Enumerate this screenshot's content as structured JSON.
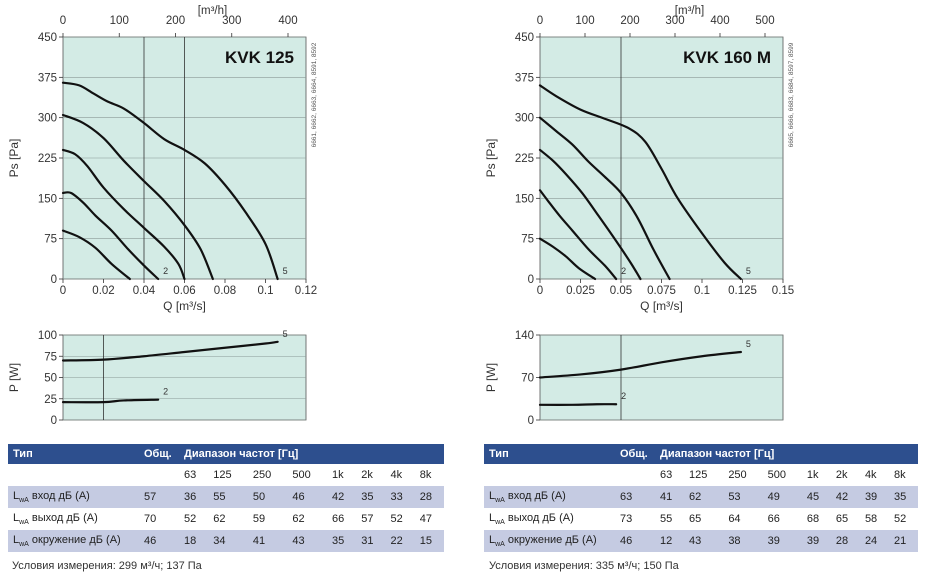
{
  "colors": {
    "plot_fill": "#d3ebe5",
    "grid": "#8a9a96",
    "curve": "#111111",
    "table_header": "#2d4f8e",
    "table_row_shade": "#c5cbe2"
  },
  "chart_data": [
    {
      "type": "line",
      "title": "KVK 125",
      "side_note": "6661, 6662, 6663, 6664, 8591, 8592",
      "xlabel": "Q [m³/s]",
      "x_ticks": [
        "0",
        "0.02",
        "0.04",
        "0.06",
        "0.08",
        "0.1",
        "0.12"
      ],
      "xlim": [
        0,
        0.12
      ],
      "top_axis_label": "[m³/h]",
      "top_ticks": [
        "0",
        "100",
        "200",
        "300",
        "400"
      ],
      "top_axis_factor": 3600,
      "ylabel": "Ps [Pa]",
      "y_ticks": [
        "0",
        "75",
        "150",
        "225",
        "300",
        "375",
        "450"
      ],
      "ylim": [
        0,
        450
      ],
      "vlines": [
        0.04,
        0.06
      ],
      "series": [
        {
          "label": "",
          "points": [
            [
              0,
              90
            ],
            [
              0.008,
              78
            ],
            [
              0.016,
              58
            ],
            [
              0.024,
              28
            ],
            [
              0.033,
              0
            ]
          ]
        },
        {
          "label": "2",
          "points": [
            [
              0,
              160
            ],
            [
              0.004,
              160
            ],
            [
              0.01,
              142
            ],
            [
              0.016,
              118
            ],
            [
              0.024,
              90
            ],
            [
              0.032,
              56
            ],
            [
              0.04,
              25
            ],
            [
              0.047,
              0
            ]
          ]
        },
        {
          "label": "",
          "points": [
            [
              0,
              240
            ],
            [
              0.006,
              232
            ],
            [
              0.012,
              210
            ],
            [
              0.02,
              170
            ],
            [
              0.03,
              130
            ],
            [
              0.04,
              95
            ],
            [
              0.05,
              60
            ],
            [
              0.057,
              28
            ],
            [
              0.06,
              0
            ]
          ]
        },
        {
          "label": "",
          "points": [
            [
              0,
              305
            ],
            [
              0.01,
              290
            ],
            [
              0.02,
              262
            ],
            [
              0.03,
              220
            ],
            [
              0.04,
              182
            ],
            [
              0.05,
              145
            ],
            [
              0.06,
              100
            ],
            [
              0.068,
              55
            ],
            [
              0.074,
              0
            ]
          ]
        },
        {
          "label": "5",
          "points": [
            [
              0,
              365
            ],
            [
              0.008,
              360
            ],
            [
              0.015,
              345
            ],
            [
              0.022,
              330
            ],
            [
              0.03,
              317
            ],
            [
              0.04,
              290
            ],
            [
              0.05,
              260
            ],
            [
              0.06,
              240
            ],
            [
              0.07,
              215
            ],
            [
              0.08,
              175
            ],
            [
              0.09,
              125
            ],
            [
              0.1,
              65
            ],
            [
              0.106,
              0
            ]
          ]
        }
      ]
    },
    {
      "type": "line",
      "title": "KVK 160 M",
      "side_note": "6665, 6666, 6683, 6684, 8597, 8599",
      "xlabel": "Q [m³/s]",
      "x_ticks": [
        "0",
        "0.025",
        "0.05",
        "0.075",
        "0.1",
        "0.125",
        "0.15"
      ],
      "xlim": [
        0,
        0.15
      ],
      "top_axis_label": "[m³/h]",
      "top_ticks": [
        "0",
        "100",
        "200",
        "300",
        "400",
        "500"
      ],
      "top_axis_factor": 3600,
      "ylabel": "Ps [Pa]",
      "y_ticks": [
        "0",
        "75",
        "150",
        "225",
        "300",
        "375",
        "450"
      ],
      "ylim": [
        0,
        450
      ],
      "vlines": [
        0.05
      ],
      "series": [
        {
          "label": "",
          "points": [
            [
              0,
              75
            ],
            [
              0.008,
              60
            ],
            [
              0.016,
              42
            ],
            [
              0.024,
              20
            ],
            [
              0.034,
              0
            ]
          ]
        },
        {
          "label": "2",
          "points": [
            [
              0,
              165
            ],
            [
              0.005,
              145
            ],
            [
              0.012,
              118
            ],
            [
              0.02,
              90
            ],
            [
              0.03,
              55
            ],
            [
              0.04,
              25
            ],
            [
              0.047,
              0
            ]
          ]
        },
        {
          "label": "",
          "points": [
            [
              0,
              240
            ],
            [
              0.008,
              220
            ],
            [
              0.016,
              195
            ],
            [
              0.026,
              160
            ],
            [
              0.036,
              118
            ],
            [
              0.046,
              75
            ],
            [
              0.056,
              30
            ],
            [
              0.062,
              0
            ]
          ]
        },
        {
          "label": "",
          "points": [
            [
              0,
              300
            ],
            [
              0.01,
              275
            ],
            [
              0.02,
              250
            ],
            [
              0.03,
              218
            ],
            [
              0.04,
              190
            ],
            [
              0.05,
              160
            ],
            [
              0.06,
              115
            ],
            [
              0.07,
              55
            ],
            [
              0.08,
              0
            ]
          ]
        },
        {
          "label": "5",
          "points": [
            [
              0,
              360
            ],
            [
              0.01,
              340
            ],
            [
              0.025,
              315
            ],
            [
              0.04,
              298
            ],
            [
              0.055,
              280
            ],
            [
              0.065,
              255
            ],
            [
              0.075,
              205
            ],
            [
              0.085,
              150
            ],
            [
              0.1,
              85
            ],
            [
              0.114,
              30
            ],
            [
              0.124,
              0
            ]
          ]
        }
      ]
    },
    {
      "type": "line",
      "xlabel": "",
      "xlim": [
        0,
        0.12
      ],
      "ylabel": "P [W]",
      "y_ticks": [
        "0",
        "25",
        "50",
        "75",
        "100"
      ],
      "ylim": [
        0,
        100
      ],
      "vlines": [
        0.02
      ],
      "series": [
        {
          "label": "2",
          "points": [
            [
              0,
              21
            ],
            [
              0.02,
              21
            ],
            [
              0.03,
              23
            ],
            [
              0.047,
              24
            ]
          ]
        },
        {
          "label": "5",
          "points": [
            [
              0,
              70
            ],
            [
              0.02,
              71
            ],
            [
              0.04,
              75
            ],
            [
              0.06,
              80
            ],
            [
              0.08,
              85
            ],
            [
              0.1,
              90
            ],
            [
              0.106,
              92
            ]
          ]
        }
      ]
    },
    {
      "type": "line",
      "xlabel": "",
      "xlim": [
        0,
        0.15
      ],
      "ylabel": "P [W]",
      "y_ticks": [
        "0",
        "70",
        "140"
      ],
      "ylim": [
        0,
        140
      ],
      "vlines": [
        0.05
      ],
      "series": [
        {
          "label": "2",
          "points": [
            [
              0,
              25
            ],
            [
              0.02,
              25
            ],
            [
              0.035,
              26
            ],
            [
              0.047,
              26
            ]
          ]
        },
        {
          "label": "5",
          "points": [
            [
              0,
              70
            ],
            [
              0.025,
              75
            ],
            [
              0.05,
              83
            ],
            [
              0.075,
              95
            ],
            [
              0.1,
              105
            ],
            [
              0.124,
              112
            ]
          ]
        }
      ]
    }
  ],
  "tables": [
    {
      "headers": {
        "type": "Тип",
        "total": "Общ.",
        "range": "Диапазон частот [Гц]"
      },
      "freqs": [
        "63",
        "125",
        "250",
        "500",
        "1k",
        "2k",
        "4k",
        "8k"
      ],
      "rows": [
        {
          "sub": "wA",
          "label": " вход дБ (А)",
          "total": "57",
          "vals": [
            "36",
            "55",
            "50",
            "46",
            "42",
            "35",
            "33",
            "28"
          ]
        },
        {
          "sub": "wA",
          "label": " выход дБ (А)",
          "total": "70",
          "vals": [
            "52",
            "62",
            "59",
            "62",
            "66",
            "57",
            "52",
            "47"
          ]
        },
        {
          "sub": "wA",
          "label": " окружение дБ (А)",
          "total": "46",
          "vals": [
            "18",
            "34",
            "41",
            "43",
            "35",
            "31",
            "22",
            "15"
          ]
        }
      ],
      "conditions": "Условия измерения: 299 м³/ч; 137 Па"
    },
    {
      "headers": {
        "type": "Тип",
        "total": "Общ.",
        "range": "Диапазон частот [Гц]"
      },
      "freqs": [
        "63",
        "125",
        "250",
        "500",
        "1k",
        "2k",
        "4k",
        "8k"
      ],
      "rows": [
        {
          "sub": "wA",
          "label": " вход дБ (А)",
          "total": "63",
          "vals": [
            "41",
            "62",
            "53",
            "49",
            "45",
            "42",
            "39",
            "35"
          ]
        },
        {
          "sub": "wA",
          "label": " выход дБ (А)",
          "total": "73",
          "vals": [
            "55",
            "65",
            "64",
            "66",
            "68",
            "65",
            "58",
            "52"
          ]
        },
        {
          "sub": "wA",
          "label": " окружение дБ (А)",
          "total": "46",
          "vals": [
            "12",
            "43",
            "38",
            "39",
            "39",
            "28",
            "24",
            "21"
          ]
        }
      ],
      "conditions": "Условия измерения: 335 м³/ч; 150 Па"
    }
  ]
}
